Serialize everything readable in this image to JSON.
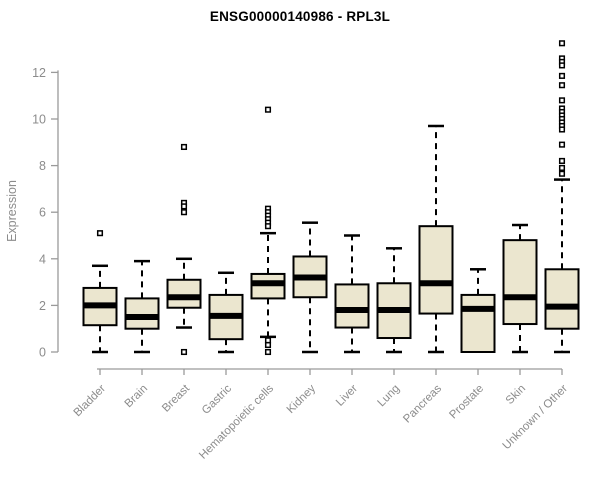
{
  "chart_data": {
    "type": "boxplot",
    "title": "ENSG00000140986 - RPL3L",
    "xlabel": "",
    "ylabel": "Expression",
    "ylim": [
      0,
      13.4
    ],
    "yticks": [
      0,
      2,
      4,
      6,
      8,
      10,
      12
    ],
    "grid": false,
    "legend": "none",
    "categories": [
      "Bladder",
      "Brain",
      "Breast",
      "Gastric",
      "Hematopoietic cells",
      "Kidney",
      "Liver",
      "Lung",
      "Pancreas",
      "Prostate",
      "Skin",
      "Unknown / Other"
    ],
    "boxes": [
      {
        "category": "Bladder",
        "whisker_low": 0,
        "q1": 1.15,
        "median": 2.0,
        "q3": 2.75,
        "whisker_high": 3.7,
        "outliers": [
          5.1
        ]
      },
      {
        "category": "Brain",
        "whisker_low": 0,
        "q1": 1.0,
        "median": 1.5,
        "q3": 2.3,
        "whisker_high": 3.9,
        "outliers": []
      },
      {
        "category": "Breast",
        "whisker_low": 1.05,
        "q1": 1.9,
        "median": 2.35,
        "q3": 3.1,
        "whisker_high": 4.0,
        "outliers": [
          8.8,
          6.4,
          6.25,
          6.0,
          0
        ]
      },
      {
        "category": "Gastric",
        "whisker_low": 0,
        "q1": 0.55,
        "median": 1.55,
        "q3": 2.45,
        "whisker_high": 3.4,
        "outliers": []
      },
      {
        "category": "Hematopoietic cells",
        "whisker_low": 0.65,
        "q1": 2.3,
        "median": 2.95,
        "q3": 3.35,
        "whisker_high": 5.1,
        "outliers": [
          10.4,
          6.15,
          6.0,
          5.85,
          5.7,
          5.55,
          5.4,
          0.5,
          0.3,
          0
        ]
      },
      {
        "category": "Kidney",
        "whisker_low": 0,
        "q1": 2.35,
        "median": 3.2,
        "q3": 4.1,
        "whisker_high": 5.55,
        "outliers": []
      },
      {
        "category": "Liver",
        "whisker_low": 0,
        "q1": 1.05,
        "median": 1.8,
        "q3": 2.9,
        "whisker_high": 5.0,
        "outliers": []
      },
      {
        "category": "Lung",
        "whisker_low": 0,
        "q1": 0.6,
        "median": 1.8,
        "q3": 2.95,
        "whisker_high": 4.45,
        "outliers": []
      },
      {
        "category": "Pancreas",
        "whisker_low": 0,
        "q1": 1.65,
        "median": 2.95,
        "q3": 5.4,
        "whisker_high": 9.7,
        "outliers": []
      },
      {
        "category": "Prostate",
        "whisker_low": 0,
        "q1": 0,
        "median": 1.85,
        "q3": 2.45,
        "whisker_high": 3.55,
        "outliers": []
      },
      {
        "category": "Skin",
        "whisker_low": 0,
        "q1": 1.2,
        "median": 2.35,
        "q3": 4.8,
        "whisker_high": 5.45,
        "outliers": []
      },
      {
        "category": "Unknown / Other",
        "whisker_low": 0,
        "q1": 1.0,
        "median": 1.95,
        "q3": 3.55,
        "whisker_high": 7.4,
        "outliers": [
          13.25,
          12.6,
          12.45,
          12.3,
          11.85,
          11.45,
          10.8,
          10.45,
          10.3,
          10.15,
          10.0,
          9.85,
          9.7,
          9.55,
          8.9,
          8.2,
          7.9,
          7.65
        ]
      }
    ],
    "colors": {
      "background": "#ffffff",
      "box_fill": "#EBE6CF",
      "box_border": "#000000",
      "median": "#000000",
      "whisker": "#000000",
      "outlier_stroke": "#000000",
      "outlier_fill": "#ffffff",
      "axis": "#9a9a9a",
      "tick_labels": "#8c8c8c",
      "axis_label": "#8c8c8c",
      "title": "#000000"
    }
  }
}
